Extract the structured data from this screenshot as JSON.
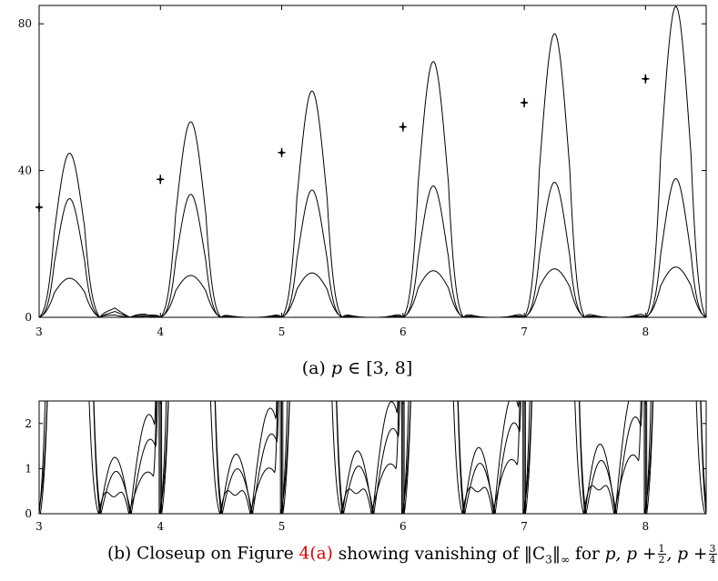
{
  "chart_data": [
    {
      "type": "line",
      "id": "a",
      "xlim": [
        3,
        8.5
      ],
      "ylim": [
        0,
        85
      ],
      "x_ticks": [
        3,
        4,
        5,
        6,
        7,
        8
      ],
      "y_ticks": [
        0,
        40,
        80
      ],
      "x_tick_labels": [
        "3",
        "4",
        "5",
        "6",
        "7",
        "8"
      ],
      "y_tick_labels": [
        "0",
        "40",
        "80"
      ],
      "grid": false,
      "legend": "none",
      "series": [
        {
          "peak_x": [
            3.25,
            4.25,
            5.25,
            6.25,
            7.25,
            8.25
          ],
          "peak_y": [
            44.5,
            53.3,
            61.7,
            69.7,
            77.3,
            84.7
          ]
        },
        {
          "peak_x": [
            3.25,
            4.25,
            5.25,
            6.25,
            7.25,
            8.25
          ],
          "peak_y": [
            32.2,
            33.5,
            34.7,
            35.8,
            36.8,
            37.8
          ]
        },
        {
          "peak_x": [
            3.25,
            4.25,
            5.25,
            6.25,
            7.25,
            8.25
          ],
          "peak_y": [
            10.6,
            11.4,
            12.1,
            12.7,
            13.2,
            13.7
          ]
        }
      ],
      "markers": {
        "x": [
          3,
          4,
          5,
          6,
          7,
          8
        ],
        "y": [
          30,
          37.6,
          44.9,
          51.9,
          58.5,
          65
        ]
      }
    },
    {
      "type": "line",
      "id": "b",
      "xlim": [
        3,
        8.5
      ],
      "ylim": [
        0,
        2.5
      ],
      "x_ticks": [
        3,
        4,
        5,
        6,
        7,
        8
      ],
      "y_ticks": [
        0,
        1,
        2
      ],
      "x_tick_labels": [
        "3",
        "4",
        "5",
        "6",
        "7",
        "8"
      ],
      "y_tick_labels": [
        "0",
        "1",
        "2"
      ],
      "grid": false,
      "legend": "none"
    }
  ],
  "captions": {
    "a_label": "(a)",
    "a_var": "p",
    "a_set": "∈ [3, 8]",
    "b_label": "(b)  Closeup on Figure",
    "b_ref": "4(a)",
    "b_text": "showing vanishing of ‖C",
    "b_sub": "3",
    "b_text2": "‖",
    "b_inf": "∞",
    "b_for": " for ",
    "b_vars": "p, p +",
    "b_half_num": "1",
    "b_half_den": "2",
    "b_comma": ", p +",
    "b_q_num": "3",
    "b_q_den": "4"
  }
}
